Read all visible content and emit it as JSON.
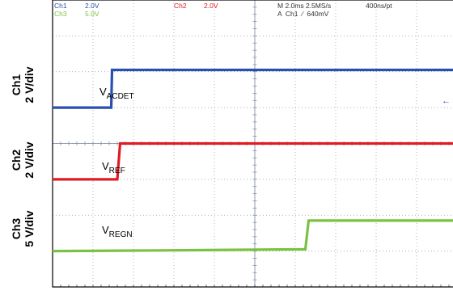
{
  "chart_data": {
    "type": "line",
    "header": {
      "ch1_name": "Ch1",
      "ch1_scale": "2.0V",
      "ch3_name": "Ch3",
      "ch3_scale": "5.0V",
      "ch2_name": "Ch2",
      "ch2_scale": "2.0V",
      "timebase": "M 2.0ms 2.5MS/s",
      "record": "400ns/pt",
      "trigger": "A  Ch1  ∕  640mV"
    },
    "x_unit": "div",
    "xlim": [
      0,
      10
    ],
    "ylim": [
      0,
      8
    ],
    "grid": true,
    "axis_labels": [
      {
        "channel": "Ch1",
        "scale": "2 V/div"
      },
      {
        "channel": "Ch2",
        "scale": "2 V/div"
      },
      {
        "channel": "Ch3",
        "scale": "5 V/div"
      }
    ],
    "series": [
      {
        "name": "ACDET",
        "label_main": "V",
        "label_sub": "ACDET",
        "color": "#2a4fb0",
        "x": [
          0,
          1.45,
          1.47,
          10
        ],
        "y": [
          5.0,
          5.0,
          6.05,
          6.05
        ]
      },
      {
        "name": "REF",
        "label_main": "V",
        "label_sub": "REF",
        "color": "#e01b24",
        "x": [
          0,
          1.6,
          1.67,
          10
        ],
        "y": [
          3.0,
          3.0,
          4.0,
          4.0
        ]
      },
      {
        "name": "REGN",
        "label_main": "V",
        "label_sub": "REGN",
        "color": "#7cc242",
        "x": [
          0,
          3.0,
          6.25,
          6.33,
          10
        ],
        "y": [
          1.0,
          1.02,
          1.05,
          1.85,
          1.85
        ]
      }
    ]
  }
}
